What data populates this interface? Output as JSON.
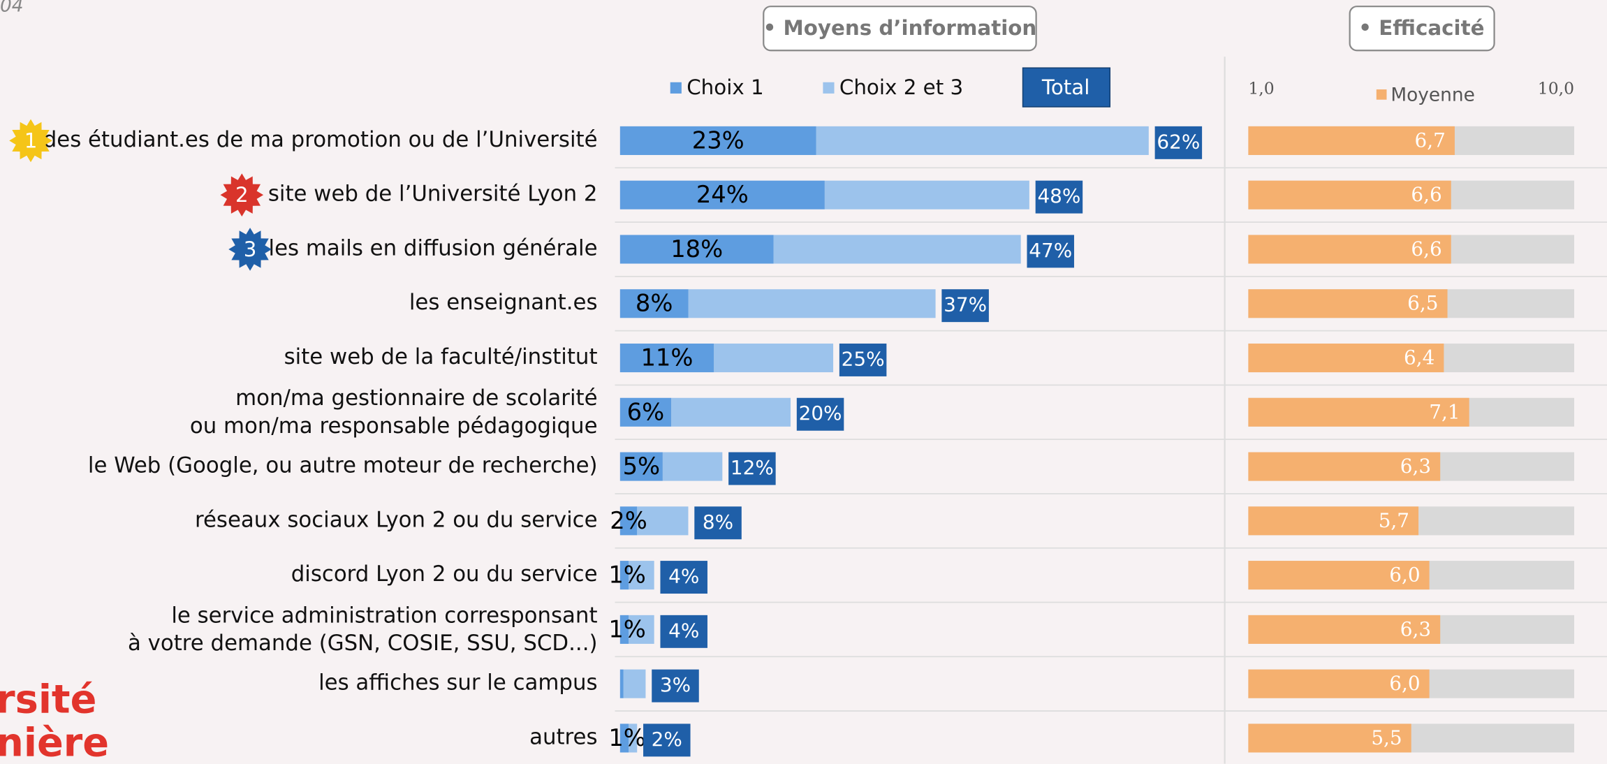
{
  "page_number": "04",
  "logo_lines": [
    "rsité",
    "nière"
  ],
  "chart_data": {
    "type": "bar",
    "panel_titles": [
      "• Moyens d’information",
      "• Efficacité"
    ],
    "categories": [
      "des étudiant.es de ma promotion ou de l’Université",
      "site web de l’Université Lyon 2",
      "les mails en diffusion générale",
      "les enseignant.es",
      "site web de la faculté/institut",
      "mon/ma gestionnaire de scolarité\nou mon/ma responsable pédagogique",
      "le Web (Google, ou autre moteur de recherche)",
      "réseaux sociaux Lyon 2 ou du service",
      "discord Lyon 2 ou du service",
      "le service administration corresponsant\nà votre demande (GSN, COSIE, SSU, SCD...)",
      "les affiches sur le campus",
      "autres"
    ],
    "badges": [
      {
        "label": "1",
        "color": "#f5c518"
      },
      {
        "label": "2",
        "color": "#d9342b"
      },
      {
        "label": "3",
        "color": "#1f5fa8"
      }
    ],
    "series": [
      {
        "name": "Choix 1",
        "color": "#5e9de0",
        "values": [
          23,
          24,
          18,
          8,
          11,
          6,
          5,
          2,
          1,
          1,
          0.4,
          1
        ],
        "value_labels": [
          "23%",
          "24%",
          "18%",
          "8%",
          "11%",
          "6%",
          "5%",
          "2%",
          "1%",
          "1%",
          null,
          "1%"
        ]
      },
      {
        "name": "Choix 2 et 3",
        "color": "#9cc3ec",
        "values": [
          39,
          24,
          29,
          29,
          14,
          14,
          7,
          6,
          3,
          3,
          2.6,
          1
        ]
      }
    ],
    "totals": {
      "name": "Total",
      "color": "#1f5fa8",
      "values": [
        62,
        48,
        47,
        37,
        25,
        20,
        12,
        8,
        4,
        4,
        3,
        2
      ],
      "value_labels": [
        "62%",
        "48%",
        "47%",
        "37%",
        "25%",
        "20%",
        "12%",
        "8%",
        "4%",
        "4%",
        "3%",
        "2%"
      ]
    },
    "means": {
      "name": "Moyenne",
      "color": "#f5b06f",
      "values": [
        6.7,
        6.6,
        6.6,
        6.5,
        6.4,
        7.1,
        6.3,
        5.7,
        6.0,
        6.3,
        6.0,
        5.5
      ],
      "value_labels": [
        "6,7",
        "6,6",
        "6,6",
        "6,5",
        "6,4",
        "7,1",
        "6,3",
        "5,7",
        "6,0",
        "6,3",
        "6,0",
        "5,5"
      ],
      "xlim": [
        1,
        10
      ],
      "xticks": [
        {
          "value": 1,
          "label": "1,0"
        },
        {
          "value": 10,
          "label": "10,0"
        }
      ]
    }
  }
}
